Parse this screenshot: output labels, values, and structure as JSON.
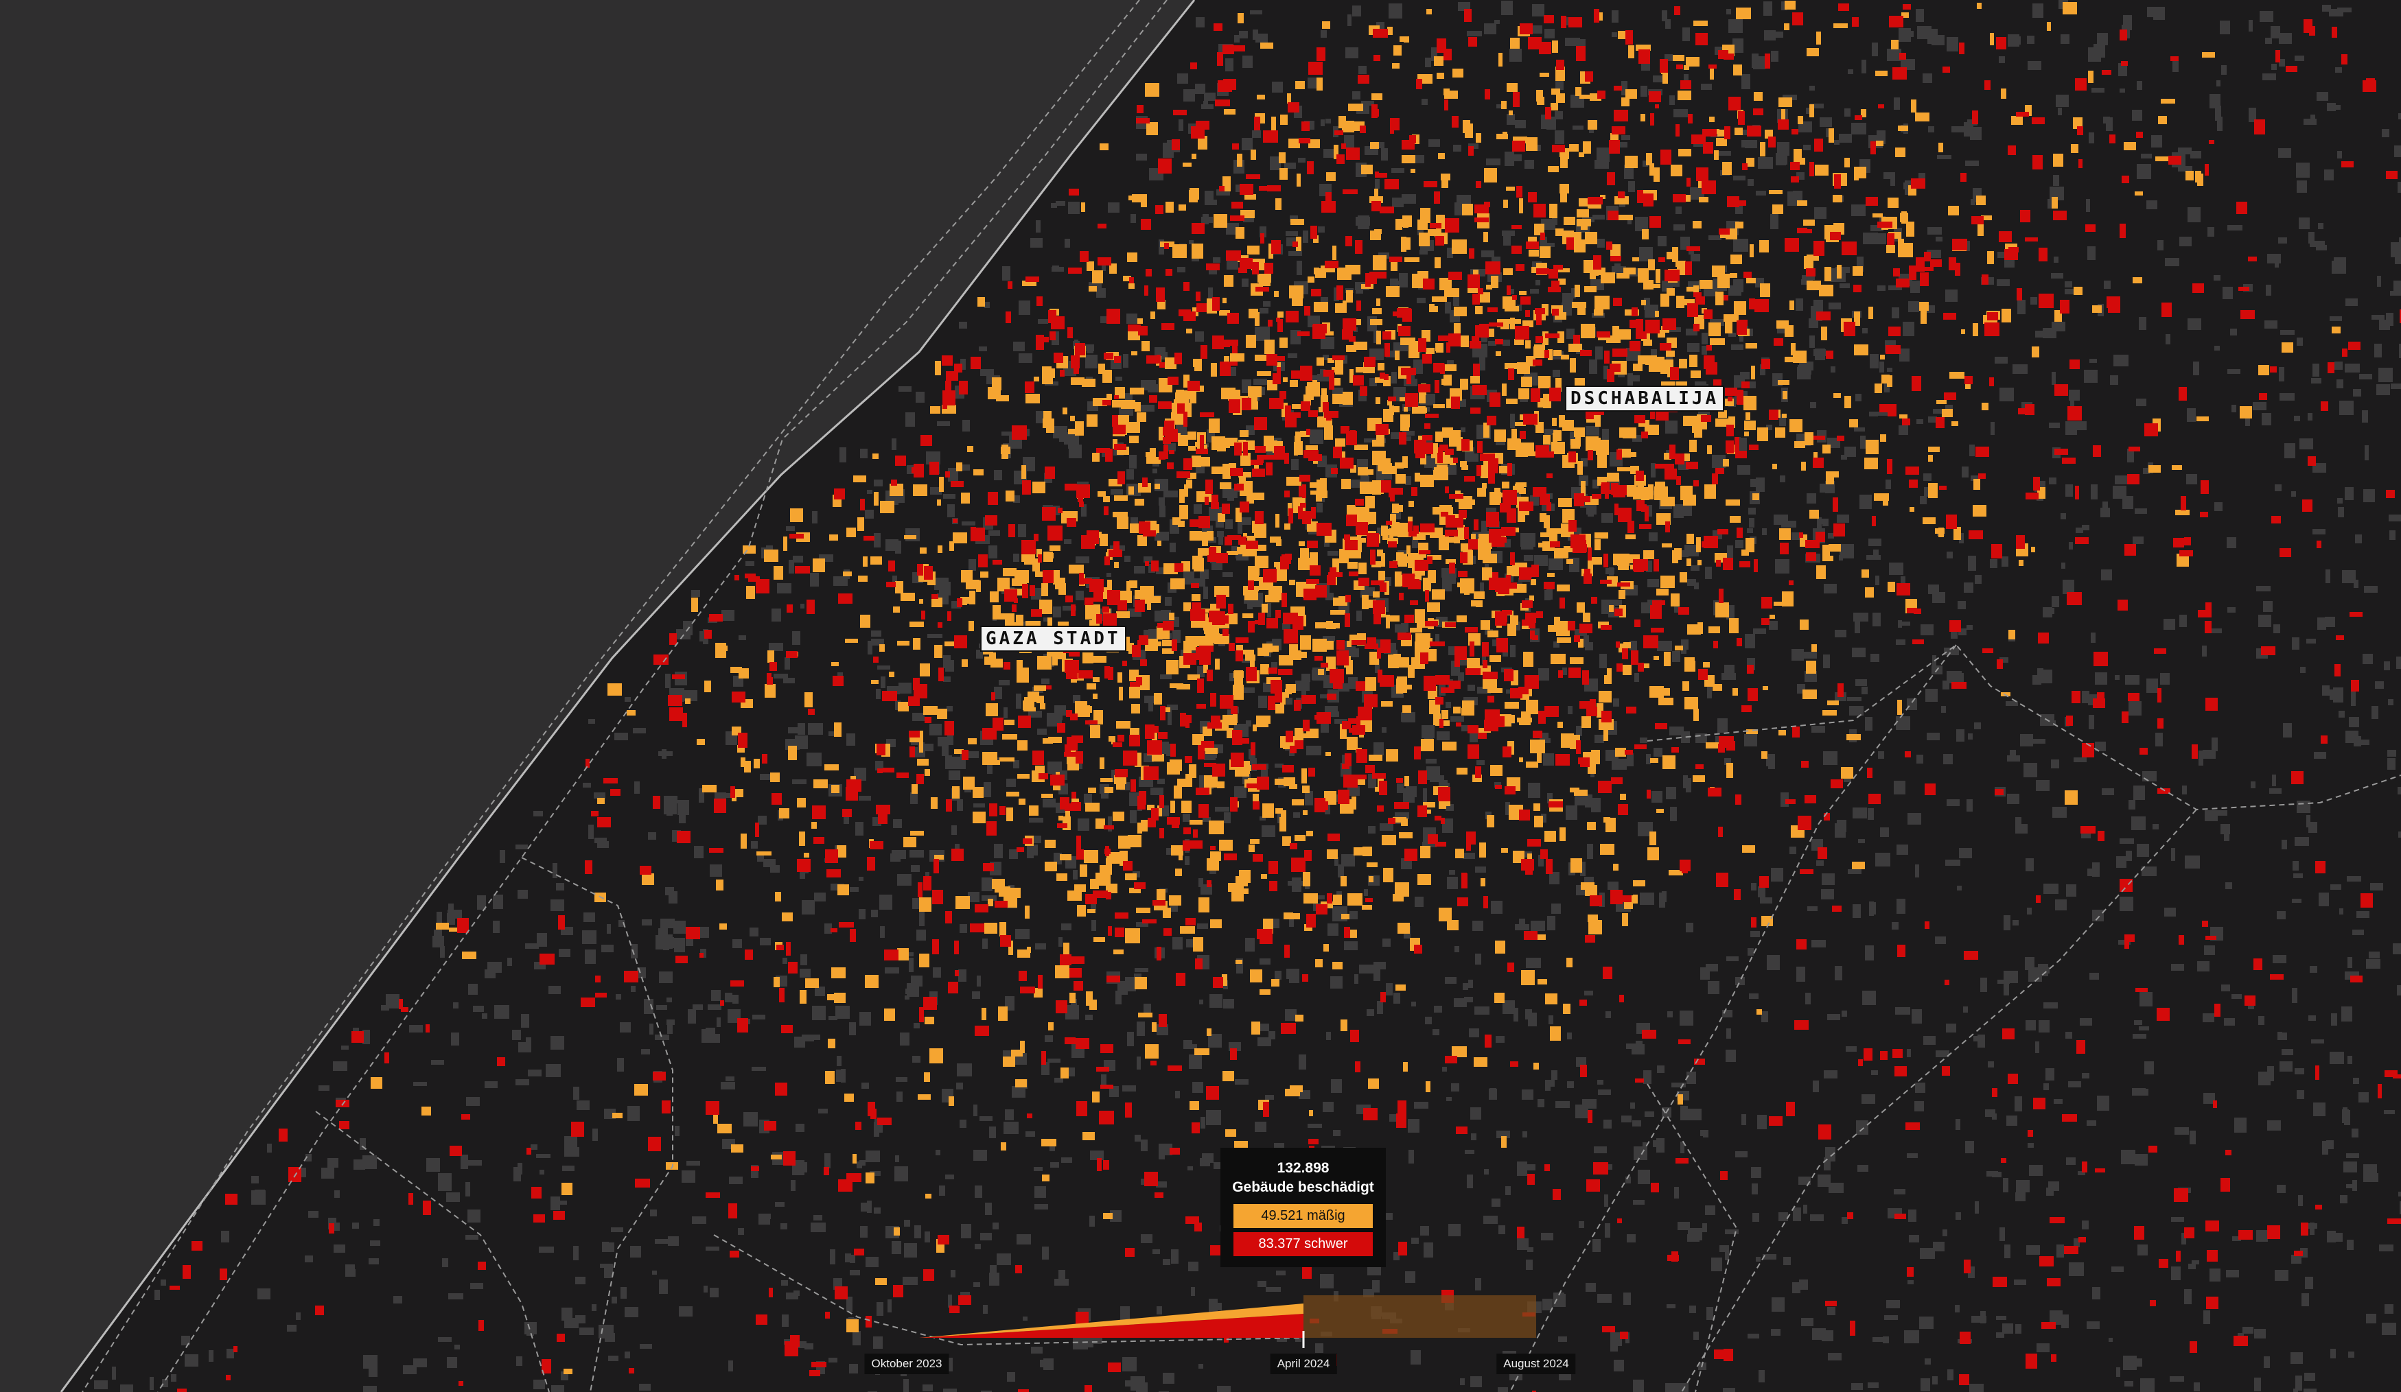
{
  "places": [
    "GAZA STADT",
    "DSCHABALIJA"
  ],
  "tooltip": {
    "total": "132.898",
    "title": "Gebäude beschädigt",
    "moderate": "49.521 mäßig",
    "severe": "83.377 schwer"
  },
  "timeline": {
    "labels": [
      "Oktober 2023",
      "April 2024",
      "August 2024"
    ]
  }
}
